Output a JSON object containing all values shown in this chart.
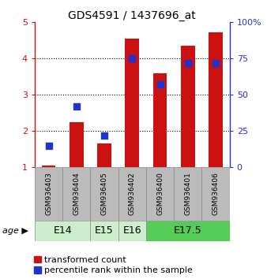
{
  "title": "GDS4591 / 1437696_at",
  "samples": [
    "GSM936403",
    "GSM936404",
    "GSM936405",
    "GSM936402",
    "GSM936400",
    "GSM936401",
    "GSM936406"
  ],
  "transformed_count": [
    1.05,
    2.25,
    1.65,
    4.55,
    3.6,
    4.35,
    4.72
  ],
  "percentile_rank": [
    15,
    42,
    22,
    75,
    57,
    72,
    72
  ],
  "age_groups": [
    {
      "label": "E14",
      "start": 0,
      "end": 1,
      "color": "#cceecc"
    },
    {
      "label": "E15",
      "start": 2,
      "end": 2,
      "color": "#cceecc"
    },
    {
      "label": "E16",
      "start": 3,
      "end": 3,
      "color": "#cceecc"
    },
    {
      "label": "E17.5",
      "start": 4,
      "end": 6,
      "color": "#55cc55"
    }
  ],
  "bar_color": "#cc1111",
  "dot_color": "#2233cc",
  "sample_box_color": "#bbbbbb",
  "sample_box_edge": "#888888",
  "age_box_edge": "#888888",
  "ylim_left": [
    1,
    5
  ],
  "ylim_right": [
    0,
    100
  ],
  "yticks_left": [
    1,
    2,
    3,
    4,
    5
  ],
  "yticks_right": [
    0,
    25,
    50,
    75,
    100
  ],
  "ylabel_left_color": "#cc1111",
  "ylabel_right_color": "#2233cc",
  "legend_red_label": "transformed count",
  "legend_blue_label": "percentile rank within the sample",
  "age_label": "age",
  "bar_width": 0.5,
  "dot_size": 40,
  "background_color": "#ffffff",
  "title_fontsize": 10,
  "tick_fontsize": 8,
  "sample_fontsize": 6.5,
  "age_fontsize": 9,
  "legend_fontsize": 8
}
